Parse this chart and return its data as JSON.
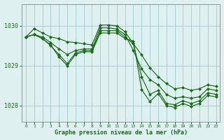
{
  "background_color": "#dff0f0",
  "grid_color": "#aacfcf",
  "line_color": "#1a6b1a",
  "title": "Graphe pression niveau de la mer (hPa)",
  "xlim": [
    -0.5,
    23.5
  ],
  "ylim": [
    1027.6,
    1030.55
  ],
  "yticks": [
    1028,
    1029,
    1030
  ],
  "xticks": [
    0,
    1,
    2,
    3,
    4,
    5,
    6,
    7,
    8,
    9,
    10,
    11,
    12,
    13,
    14,
    15,
    16,
    17,
    18,
    19,
    20,
    21,
    22,
    23
  ],
  "series": [
    {
      "x": [
        0,
        1,
        2,
        3,
        4,
        5,
        6,
        7,
        8,
        9,
        10,
        11,
        12,
        13,
        14,
        15,
        16,
        17,
        18,
        19,
        20,
        21,
        22,
        23
      ],
      "y": [
        1029.72,
        1029.93,
        1029.82,
        1029.72,
        1029.68,
        1029.6,
        1029.58,
        1029.55,
        1029.52,
        1030.02,
        1030.02,
        1030.0,
        1029.85,
        1029.55,
        1029.27,
        1028.95,
        1028.72,
        1028.55,
        1028.42,
        1028.45,
        1028.38,
        1028.42,
        1028.52,
        1028.48
      ]
    },
    {
      "x": [
        0,
        1,
        2,
        3,
        4,
        5,
        6,
        7,
        8,
        9,
        10,
        11,
        12,
        13,
        14,
        15,
        16,
        17,
        18,
        19,
        20,
        21,
        22,
        23
      ],
      "y": [
        1029.72,
        1029.78,
        1029.72,
        1029.58,
        1029.42,
        1029.28,
        1029.38,
        1029.42,
        1029.42,
        1029.95,
        1029.95,
        1029.92,
        1029.78,
        1029.38,
        1028.92,
        1028.65,
        1028.52,
        1028.28,
        1028.18,
        1028.22,
        1028.18,
        1028.22,
        1028.42,
        1028.38
      ]
    },
    {
      "x": [
        0,
        1,
        2,
        3,
        4,
        5,
        6,
        7,
        8,
        9,
        10,
        11,
        12,
        13,
        14,
        15,
        16,
        17,
        18,
        19,
        20,
        21,
        22,
        23
      ],
      "y": [
        1029.72,
        1029.78,
        1029.68,
        1029.5,
        1029.28,
        1029.05,
        1029.32,
        1029.38,
        1029.38,
        1029.88,
        1029.88,
        1029.88,
        1029.72,
        1029.55,
        1028.72,
        1028.28,
        1028.38,
        1028.05,
        1028.02,
        1028.12,
        1028.05,
        1028.12,
        1028.32,
        1028.28
      ]
    },
    {
      "x": [
        0,
        1,
        2,
        3,
        4,
        5,
        6,
        7,
        8,
        9,
        10,
        11,
        12,
        13,
        14,
        15,
        16,
        17,
        18,
        19,
        20,
        21,
        22,
        23
      ],
      "y": [
        1029.72,
        1029.78,
        1029.68,
        1029.52,
        1029.22,
        1029.0,
        1029.28,
        1029.35,
        1029.35,
        1029.82,
        1029.82,
        1029.82,
        1029.68,
        1029.62,
        1028.4,
        1028.1,
        1028.3,
        1028.0,
        1027.95,
        1028.05,
        1027.98,
        1028.05,
        1028.25,
        1028.22
      ]
    }
  ]
}
